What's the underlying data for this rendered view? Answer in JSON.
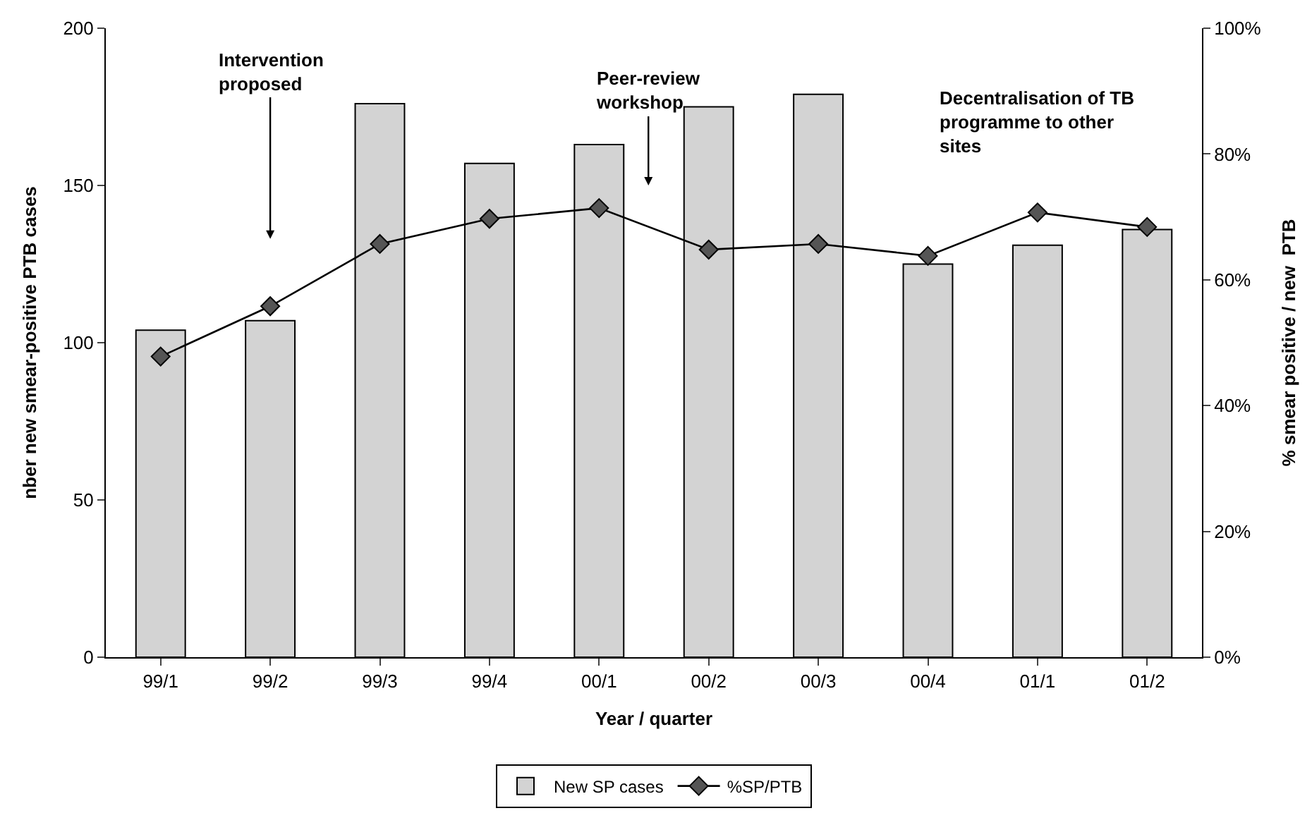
{
  "chart_data": {
    "type": "bar",
    "xlabel": "Year / quarter",
    "ylabel": "nber new smear-positive PTB cases",
    "y2label": "% smear positive / new  PTB",
    "categories": [
      "99/1",
      "99/2",
      "99/3",
      "99/4",
      "00/1",
      "00/2",
      "00/3",
      "00/4",
      "01/1",
      "01/2"
    ],
    "series": [
      {
        "name": "New SP cases",
        "color": "#d3d3d3",
        "values": [
          104,
          107,
          176,
          157,
          163,
          175,
          179,
          125,
          131,
          136
        ]
      },
      {
        "name": "%SP/PTB",
        "type": "line",
        "axis": "y2",
        "color": "#000000",
        "marker": "diamond",
        "values": [
          47.8,
          55.8,
          65.7,
          69.7,
          71.4,
          64.8,
          65.7,
          63.8,
          70.7,
          68.4
        ]
      }
    ],
    "ylim": [
      0,
      200
    ],
    "yticks": [
      0,
      50,
      100,
      150,
      200
    ],
    "y2lim": [
      0,
      100
    ],
    "y2ticks": [
      {
        "value": 0,
        "label": "0%"
      },
      {
        "value": 20,
        "label": "20%"
      },
      {
        "value": 40,
        "label": "40%"
      },
      {
        "value": 60,
        "label": "60%"
      },
      {
        "value": 80,
        "label": "80%"
      },
      {
        "value": 100,
        "label": "100%"
      }
    ],
    "annotations": [
      "Intervention\nproposed",
      "Peer-review\nworkshop",
      "Decentralisation of TB\nprogramme to other\nsites"
    ],
    "legend": "bottom"
  }
}
